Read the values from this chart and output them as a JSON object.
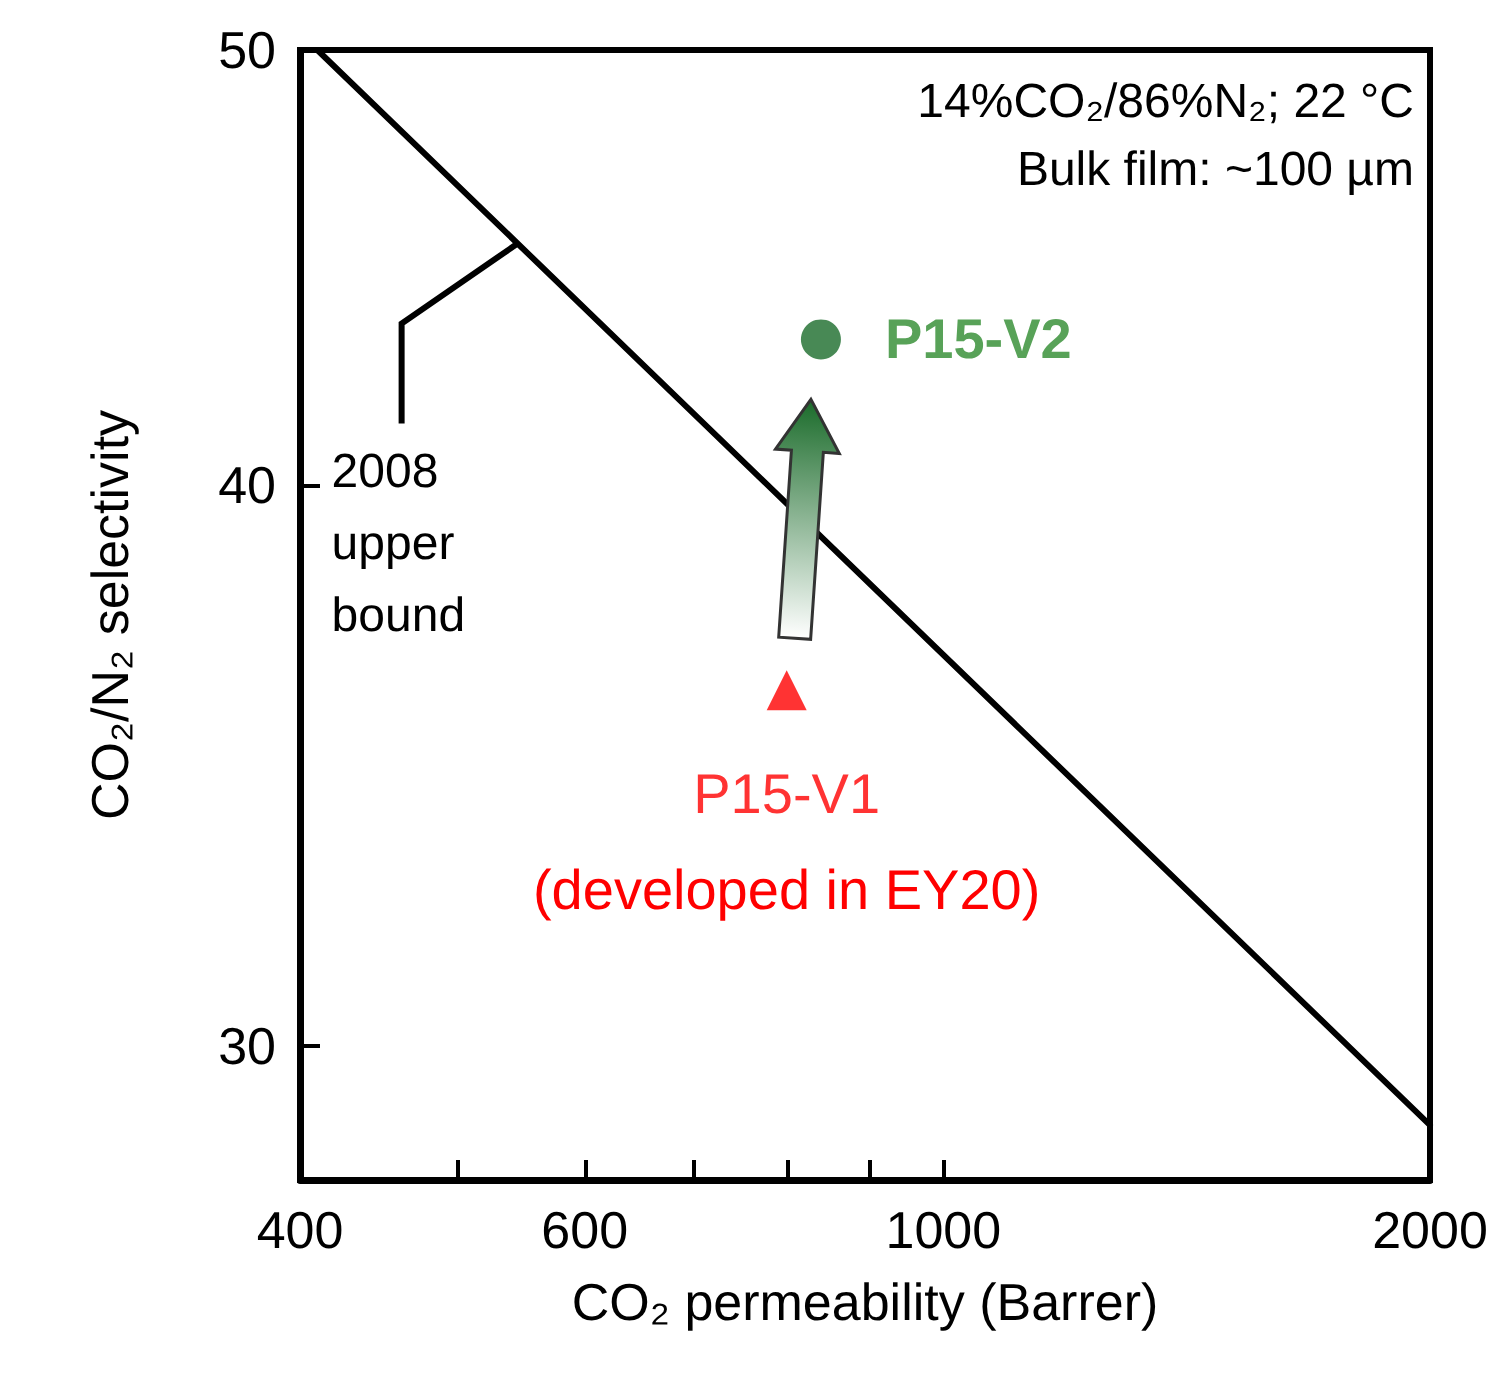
{
  "chart_data": {
    "type": "scatter",
    "xlabel": "CO₂ permeability (Barrer)",
    "ylabel": "CO₂/N₂ selectivity",
    "log": "xy",
    "grid": false,
    "legend": false,
    "xlim": [
      400,
      2000
    ],
    "ylim": [
      28,
      50
    ],
    "xticks": [
      400,
      {
        "value": 500,
        "label": null
      },
      600,
      {
        "value": 700,
        "label": null
      },
      {
        "value": 800,
        "label": null
      },
      {
        "value": 900,
        "label": null
      },
      1000,
      2000
    ],
    "yticks": [
      30,
      40,
      50
    ],
    "series": [
      {
        "name": "2008 upper bound",
        "type": "line",
        "color": "#000000",
        "x": [
          410,
          2000
        ],
        "values": [
          50,
          28.8
        ],
        "marker": "none",
        "line_style": "solid"
      },
      {
        "name": "P15-V1",
        "color": "#ff0000",
        "x": [
          800
        ],
        "values": [
          36
        ],
        "marker": "triangle"
      },
      {
        "name": "P15-V2",
        "color": "#1a6b2a",
        "x": [
          840
        ],
        "values": [
          43.1
        ],
        "marker": "circle"
      }
    ],
    "annotations": [
      "14%CO₂/86%N₂; 22 °C",
      "Bulk film: ~100 µm",
      "(developed in EY20)"
    ]
  }
}
